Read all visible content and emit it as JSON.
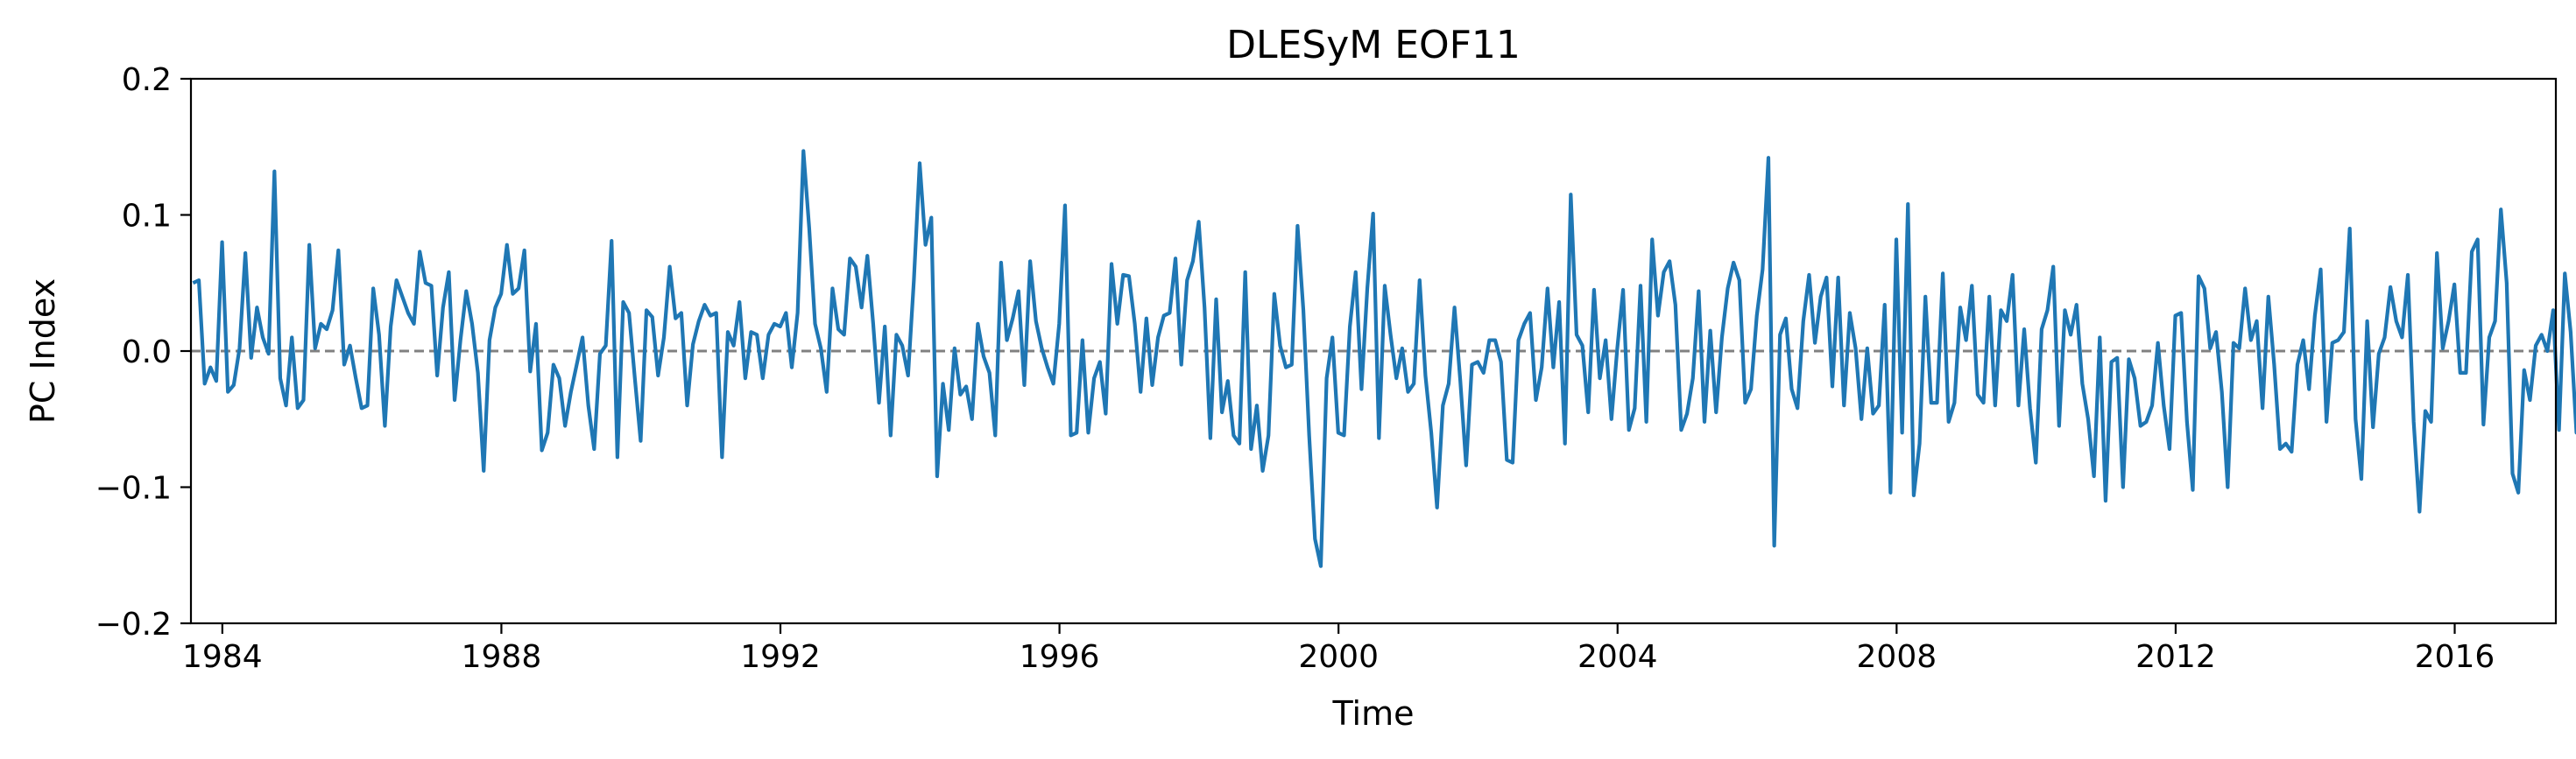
{
  "chart_data": {
    "type": "line",
    "title": "DLESyM  EOF11",
    "xlabel": "Time",
    "ylabel": "PC Index",
    "xlim": [
      1983.55,
      2017.45
    ],
    "ylim": [
      -0.2,
      0.2
    ],
    "xticks": [
      1984,
      1988,
      1992,
      1996,
      2000,
      2004,
      2008,
      2012,
      2016
    ],
    "xtick_labels": [
      "1984",
      "1988",
      "1992",
      "1996",
      "2000",
      "2004",
      "2008",
      "2012",
      "2016"
    ],
    "yticks": [
      -0.2,
      -0.1,
      0.0,
      0.1,
      0.2
    ],
    "ytick_labels": [
      "−0.2",
      "−0.1",
      "0.0",
      "0.1",
      "0.2"
    ],
    "grid": false,
    "legend": "none",
    "reference_line": {
      "y": 0.0,
      "style": "dashed",
      "color": "#808080"
    },
    "series": [
      {
        "color": "#1f77b4",
        "x_start": 1983.58,
        "x_step": 0.08333,
        "values": [
          0.05,
          0.052,
          -0.024,
          -0.012,
          -0.022,
          0.08,
          -0.03,
          -0.025,
          0.002,
          0.072,
          -0.005,
          0.032,
          0.01,
          -0.002,
          0.132,
          -0.02,
          -0.04,
          0.01,
          -0.042,
          -0.036,
          0.078,
          0.002,
          0.02,
          0.016,
          0.03,
          0.074,
          -0.01,
          0.004,
          -0.02,
          -0.042,
          -0.04,
          0.046,
          0.012,
          -0.055,
          0.018,
          0.052,
          0.04,
          0.028,
          0.02,
          0.073,
          0.05,
          0.048,
          -0.018,
          0.032,
          0.058,
          -0.036,
          0.008,
          0.044,
          0.02,
          -0.016,
          -0.088,
          0.008,
          0.032,
          0.042,
          0.078,
          0.042,
          0.046,
          0.074,
          -0.015,
          0.02,
          -0.073,
          -0.06,
          -0.01,
          -0.02,
          -0.055,
          -0.03,
          -0.01,
          0.01,
          -0.04,
          -0.072,
          -0.002,
          0.004,
          0.081,
          -0.078,
          0.036,
          0.028,
          -0.02,
          -0.066,
          0.03,
          0.025,
          -0.018,
          0.01,
          0.062,
          0.024,
          0.028,
          -0.04,
          0.005,
          0.022,
          0.034,
          0.026,
          0.028,
          -0.078,
          0.014,
          0.004,
          0.036,
          -0.02,
          0.014,
          0.012,
          -0.02,
          0.012,
          0.02,
          0.018,
          0.028,
          -0.012,
          0.028,
          0.147,
          0.09,
          0.02,
          0.002,
          -0.03,
          0.046,
          0.016,
          0.012,
          0.068,
          0.062,
          0.032,
          0.07,
          0.02,
          -0.038,
          0.018,
          -0.062,
          0.012,
          0.004,
          -0.018,
          0.052,
          0.138,
          0.078,
          0.098,
          -0.092,
          -0.024,
          -0.058,
          0.002,
          -0.032,
          -0.026,
          -0.05,
          0.02,
          -0.004,
          -0.016,
          -0.062,
          0.065,
          0.008,
          0.024,
          0.044,
          -0.025,
          0.066,
          0.022,
          0.002,
          -0.012,
          -0.024,
          0.02,
          0.107,
          -0.062,
          -0.06,
          0.008,
          -0.06,
          -0.02,
          -0.008,
          -0.046,
          0.064,
          0.02,
          0.056,
          0.055,
          0.02,
          -0.03,
          0.024,
          -0.025,
          0.01,
          0.026,
          0.028,
          0.068,
          -0.01,
          0.052,
          0.066,
          0.095,
          0.032,
          -0.064,
          0.038,
          -0.045,
          -0.022,
          -0.062,
          -0.068,
          0.058,
          -0.072,
          -0.04,
          -0.088,
          -0.062,
          0.042,
          0.004,
          -0.012,
          -0.01,
          0.092,
          0.03,
          -0.062,
          -0.138,
          -0.158,
          -0.02,
          0.01,
          -0.06,
          -0.062,
          0.018,
          0.058,
          -0.028,
          0.046,
          0.101,
          -0.064,
          0.048,
          0.012,
          -0.02,
          0.002,
          -0.03,
          -0.024,
          0.052,
          -0.018,
          -0.06,
          -0.115,
          -0.04,
          -0.024,
          0.032,
          -0.022,
          -0.084,
          -0.01,
          -0.008,
          -0.016,
          0.008,
          0.008,
          -0.008,
          -0.08,
          -0.082,
          0.008,
          0.02,
          0.028,
          -0.036,
          -0.012,
          0.046,
          -0.012,
          0.036,
          -0.068,
          0.115,
          0.012,
          0.004,
          -0.045,
          0.045,
          -0.02,
          0.008,
          -0.05,
          0.002,
          0.045,
          -0.058,
          -0.042,
          0.048,
          -0.052,
          0.082,
          0.026,
          0.058,
          0.066,
          0.034,
          -0.058,
          -0.046,
          -0.02,
          0.044,
          -0.052,
          0.015,
          -0.045,
          0.01,
          0.046,
          0.065,
          0.052,
          -0.038,
          -0.028,
          0.026,
          0.06,
          0.142,
          -0.143,
          0.012,
          0.024,
          -0.028,
          -0.042,
          0.022,
          0.056,
          0.006,
          0.04,
          0.054,
          -0.026,
          0.054,
          -0.04,
          0.028,
          0.002,
          -0.05,
          0.002,
          -0.046,
          -0.04,
          0.034,
          -0.104,
          0.082,
          -0.06,
          0.108,
          -0.106,
          -0.068,
          0.04,
          -0.038,
          -0.038,
          0.057,
          -0.052,
          -0.038,
          0.032,
          0.008,
          0.048,
          -0.032,
          -0.038,
          0.04,
          -0.04,
          0.03,
          0.022,
          0.056,
          -0.04,
          0.016,
          -0.042,
          -0.082,
          0.016,
          0.03,
          0.062,
          -0.055,
          0.03,
          0.012,
          0.034,
          -0.024,
          -0.05,
          -0.092,
          0.01,
          -0.11,
          -0.008,
          -0.005,
          -0.1,
          -0.006,
          -0.02,
          -0.055,
          -0.052,
          -0.04,
          0.006,
          -0.04,
          -0.072,
          0.026,
          0.028,
          -0.052,
          -0.102,
          0.055,
          0.046,
          0.002,
          0.014,
          -0.03,
          -0.1,
          0.006,
          0.002,
          0.046,
          0.008,
          0.022,
          -0.042,
          0.04,
          -0.01,
          -0.072,
          -0.068,
          -0.074,
          -0.01,
          0.008,
          -0.028,
          0.026,
          0.06,
          -0.052,
          0.006,
          0.008,
          0.014,
          0.09,
          -0.05,
          -0.094,
          0.022,
          -0.056,
          -0.002,
          0.01,
          0.047,
          0.022,
          0.01,
          0.056,
          -0.052,
          -0.118,
          -0.044,
          -0.052,
          0.072,
          0.002,
          0.022,
          0.049,
          -0.016,
          -0.016,
          0.073,
          0.082,
          -0.054,
          0.01,
          0.022,
          0.104,
          0.05,
          -0.09,
          -0.104,
          -0.014,
          -0.036,
          0.004,
          0.012,
          0.0,
          0.03,
          -0.058,
          0.057,
          0.014,
          -0.06,
          0.06,
          -0.02,
          -0.062
        ]
      }
    ]
  }
}
